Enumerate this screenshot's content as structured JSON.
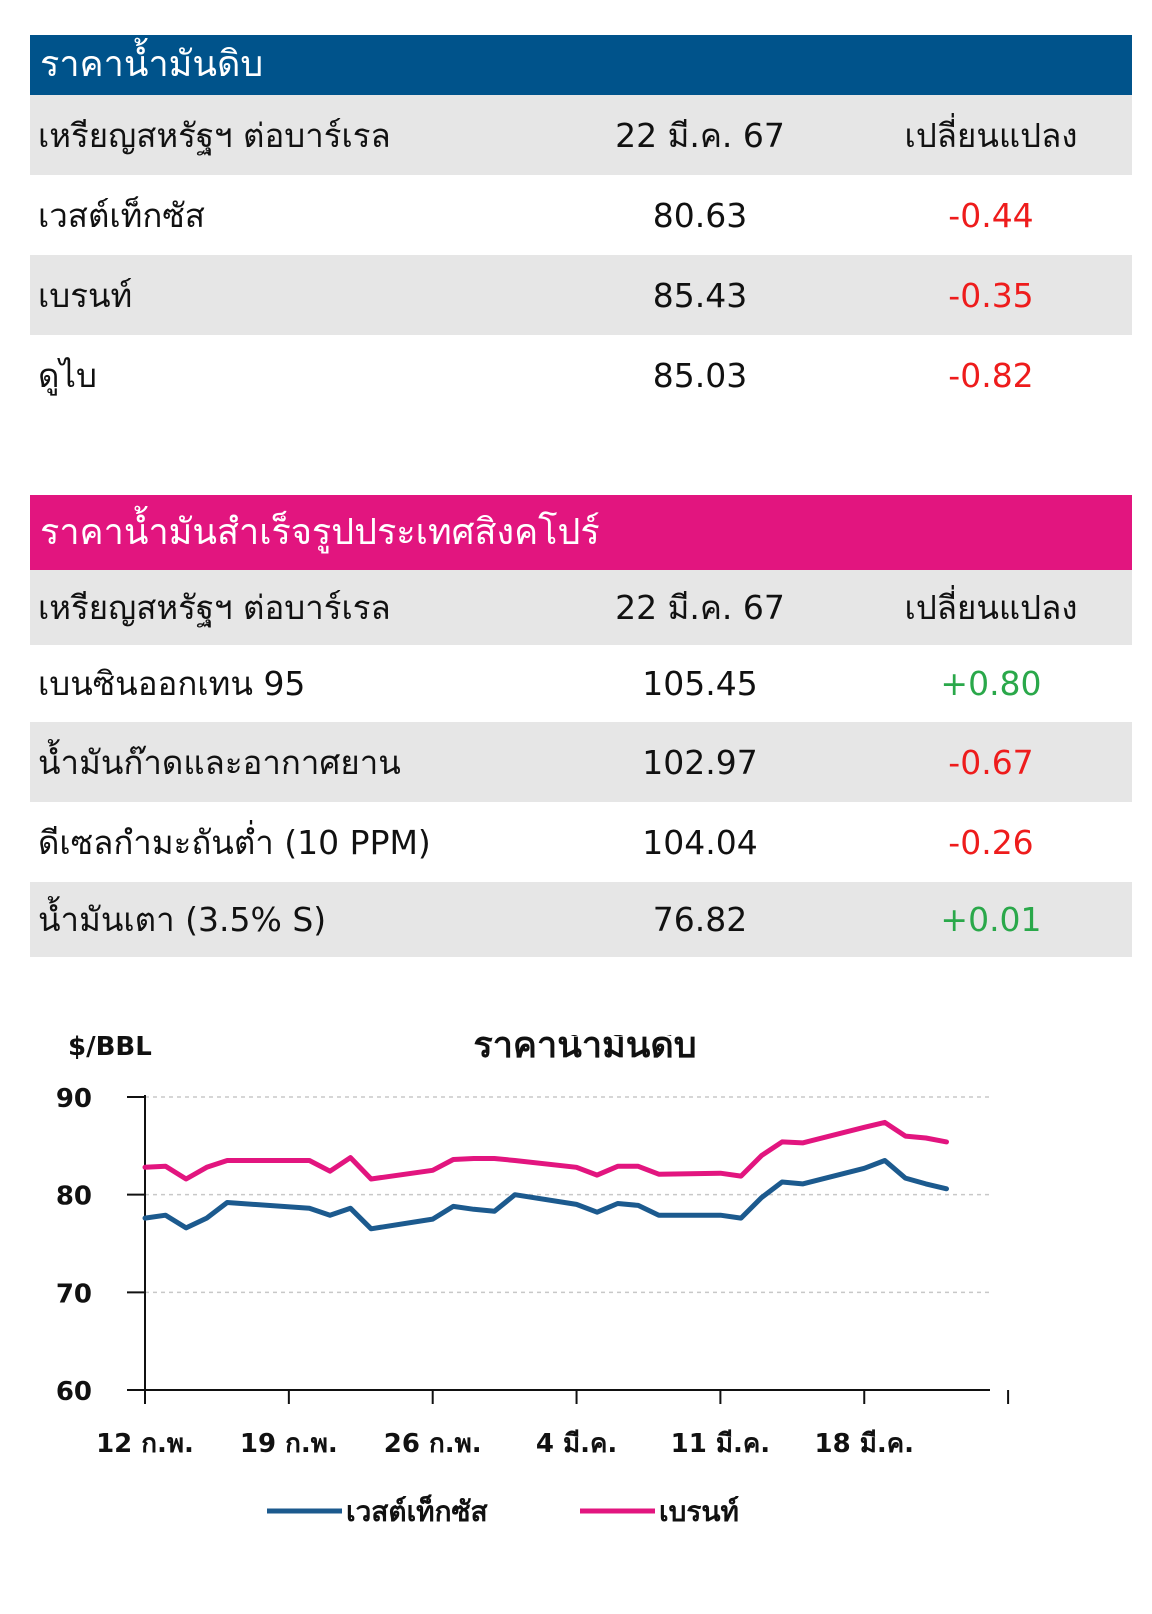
{
  "crude_table": {
    "title": "ราคาน้ำมันดิบ",
    "header": {
      "unit": "เหรียญสหรัฐฯ ต่อบาร์เรล",
      "date": "22 มี.ค. 67",
      "change": "เปลี่ยนแปลง"
    },
    "rows": [
      {
        "name": "เวสต์เท็กซัส",
        "price": "80.63",
        "change": "-0.44"
      },
      {
        "name": "เบรนท์",
        "price": "85.43",
        "change": "-0.35"
      },
      {
        "name": "ดูไบ",
        "price": "85.03",
        "change": "-0.82"
      }
    ]
  },
  "singapore_table": {
    "title": "ราคาน้ำมันสำเร็จรูปประเทศสิงคโปร์",
    "header": {
      "unit": "เหรียญสหรัฐฯ ต่อบาร์เรล",
      "date": "22 มี.ค. 67",
      "change": "เปลี่ยนแปลง"
    },
    "rows": [
      {
        "name": "เบนซินออกเทน 95",
        "price": "105.45",
        "change": "+0.80"
      },
      {
        "name": "น้ำมันก๊าดและอากาศยาน",
        "price": "102.97",
        "change": "-0.67"
      },
      {
        "name": "ดีเซลกำมะถันต่ำ (10 PPM)",
        "price": "104.04",
        "change": "-0.26"
      },
      {
        "name": "น้ำมันเตา (3.5% S)",
        "price": "76.82",
        "change": "+0.01"
      }
    ]
  },
  "colors": {
    "header_blue": "#00538b",
    "header_pink": "#e2157f",
    "negative": "#ee1c1c",
    "positive": "#2aa84a",
    "wti_line": "#1c5a8e",
    "brent_line": "#e2157f"
  },
  "chart_data": {
    "type": "line",
    "title": "ราคาน้ำมันดิบ",
    "ylabel": "$/BBL",
    "ylim": [
      60,
      90
    ],
    "yticks": [
      "90",
      "80",
      "70",
      "60"
    ],
    "grid": true,
    "x_tick_labels": [
      "12 ก.พ.",
      "19 ก.พ.",
      "26 ก.พ.",
      "4 มี.ค.",
      "11 มี.ค.",
      "18 มี.ค."
    ],
    "x": [
      "2024-02-12",
      "2024-02-13",
      "2024-02-14",
      "2024-02-15",
      "2024-02-16",
      "2024-02-20",
      "2024-02-21",
      "2024-02-22",
      "2024-02-23",
      "2024-02-26",
      "2024-02-27",
      "2024-02-28",
      "2024-02-29",
      "2024-03-01",
      "2024-03-04",
      "2024-03-05",
      "2024-03-06",
      "2024-03-07",
      "2024-03-08",
      "2024-03-11",
      "2024-03-12",
      "2024-03-13",
      "2024-03-14",
      "2024-03-15",
      "2024-03-18",
      "2024-03-19",
      "2024-03-20",
      "2024-03-21",
      "2024-03-22"
    ],
    "series": [
      {
        "name": "เวสต์เท็กซัส",
        "values": [
          77.6,
          77.9,
          76.6,
          77.6,
          79.2,
          78.6,
          77.9,
          78.6,
          76.5,
          77.5,
          78.8,
          78.5,
          78.3,
          80.0,
          79.0,
          78.2,
          79.1,
          78.9,
          77.9,
          77.9,
          77.6,
          79.7,
          81.3,
          81.1,
          82.7,
          83.5,
          81.7,
          81.1,
          80.6
        ]
      },
      {
        "name": "เบรนท์",
        "values": [
          82.8,
          82.9,
          81.6,
          82.8,
          83.5,
          83.5,
          82.4,
          83.8,
          81.6,
          82.5,
          83.6,
          83.7,
          83.7,
          83.5,
          82.8,
          82.0,
          82.9,
          82.9,
          82.1,
          82.2,
          81.9,
          84.0,
          85.4,
          85.3,
          86.9,
          87.4,
          86.0,
          85.8,
          85.4
        ]
      }
    ],
    "legend": "bottom-center"
  }
}
